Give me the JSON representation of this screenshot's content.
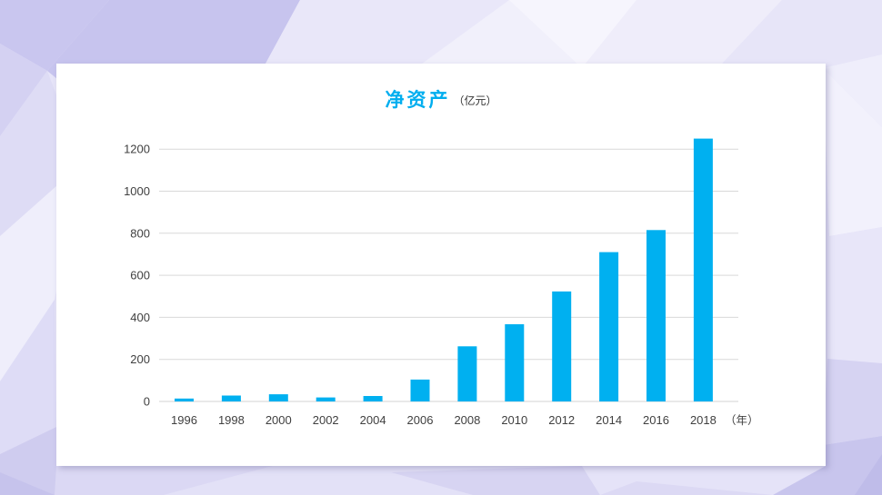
{
  "slide": {
    "card_background": "#FFFFFF",
    "background_palette": [
      "#C7C4EE",
      "#D4D1F2",
      "#E6E4F8",
      "#F2F1FC",
      "#CFCCEF"
    ]
  },
  "chart_data": {
    "type": "bar",
    "title": "净资产",
    "unit_label": "（亿元）",
    "x_axis_suffix": "（年）",
    "categories": [
      "1996",
      "1998",
      "2000",
      "2002",
      "2004",
      "2006",
      "2008",
      "2010",
      "2012",
      "2014",
      "2016",
      "2018"
    ],
    "values": [
      14,
      28,
      34,
      19,
      26,
      104,
      262,
      367,
      523,
      710,
      815,
      1250
    ],
    "ylim": [
      0,
      1300
    ],
    "yticks": [
      0,
      200,
      400,
      600,
      800,
      1000,
      1200
    ],
    "grid": true,
    "legend": false,
    "colors": {
      "bar": "#00B0F0",
      "title": "#00AEEF",
      "gridline": "#D9D9D9",
      "axis_line": "#D3D3D3",
      "tick_label": "#404040",
      "unit_label": "#333333"
    }
  }
}
